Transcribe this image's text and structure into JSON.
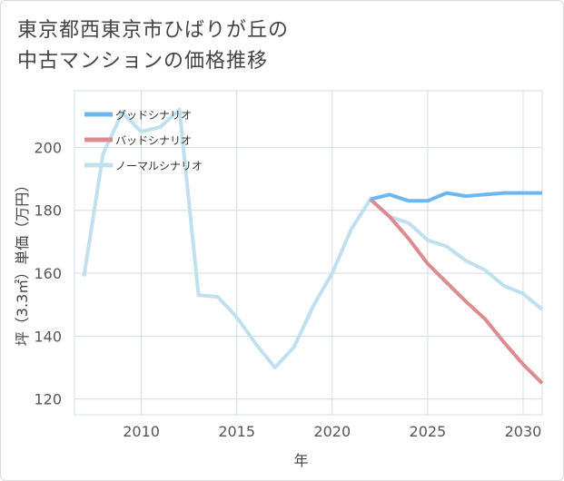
{
  "title_lines": [
    "東京都西東京市ひばりが丘の",
    "中古マンションの価格推移"
  ],
  "chart_data": {
    "type": "line",
    "title": "東京都西東京市ひばりが丘の中古マンションの価格推移",
    "xlabel": "年",
    "ylabel": "坪（3.3㎡）単価（万円）",
    "xlim": [
      2006.5,
      2031
    ],
    "ylim": [
      115,
      218
    ],
    "xticks": [
      2010,
      2015,
      2020,
      2025,
      2030
    ],
    "yticks": [
      120,
      140,
      160,
      180,
      200
    ],
    "grid": true,
    "legend_position": "top-left",
    "series": [
      {
        "name": "グッドシナリオ",
        "color": "#6cb8ee",
        "x": [
          2022,
          2023,
          2024,
          2025,
          2026,
          2027,
          2028,
          2029,
          2030,
          2031
        ],
        "y": [
          183.5,
          185,
          183,
          183,
          185.5,
          184.5,
          185,
          185.5,
          185.5,
          185.5
        ]
      },
      {
        "name": "バッドシナリオ",
        "color": "#de8a91",
        "x": [
          2022,
          2023,
          2024,
          2025,
          2026,
          2027,
          2028,
          2029,
          2030,
          2031
        ],
        "y": [
          183.5,
          178,
          171,
          163,
          157,
          151,
          145.5,
          138,
          131,
          125
        ]
      },
      {
        "name": "ノーマルシナリオ",
        "color": "#c0e0ee",
        "x": [
          2007,
          2008,
          2009,
          2010,
          2011,
          2012,
          2013,
          2014,
          2015,
          2016,
          2017,
          2018,
          2019,
          2020,
          2021,
          2022,
          2023,
          2024,
          2025,
          2026,
          2027,
          2028,
          2029,
          2030,
          2031
        ],
        "y": [
          159,
          198,
          211,
          205,
          206.5,
          212,
          153,
          152.5,
          146,
          137.5,
          130,
          136.5,
          149.5,
          160,
          174,
          183.5,
          178,
          176,
          170.5,
          168.5,
          164,
          161,
          156,
          153.5,
          148.5
        ]
      }
    ]
  }
}
